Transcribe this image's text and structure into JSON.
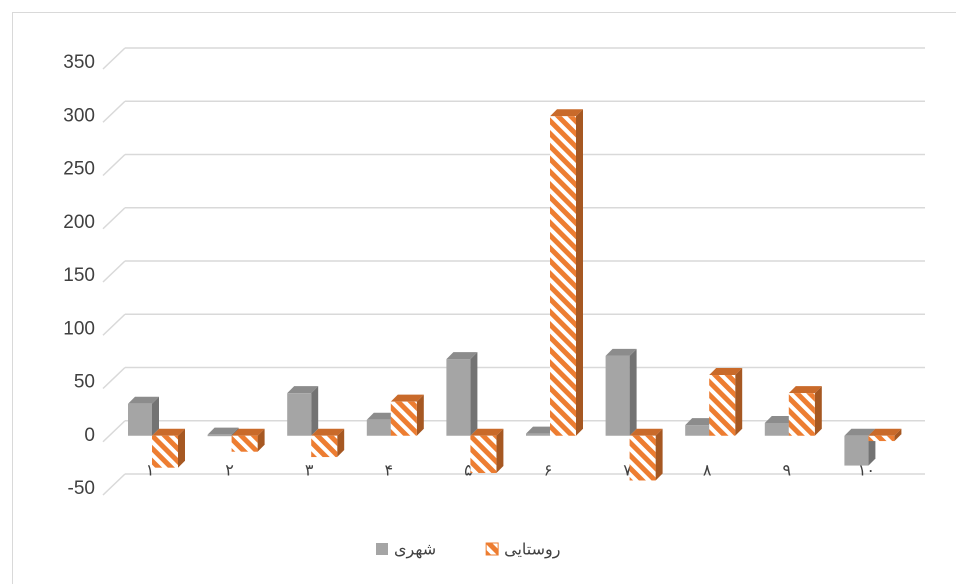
{
  "chart_data": {
    "type": "bar3d",
    "categories": [
      "۱",
      "۲",
      "۳",
      "۴",
      "۵",
      "۶",
      "۷",
      "۸",
      "۹",
      "۱۰"
    ],
    "series": [
      {
        "name": "شهری",
        "color": "#a5a5a5",
        "values": [
          30,
          1,
          40,
          15,
          72,
          2,
          75,
          10,
          12,
          -28
        ]
      },
      {
        "name": "روستایی",
        "color": "#ed7d31",
        "values": [
          -30,
          -15,
          -20,
          32,
          -35,
          300,
          -42,
          57,
          40,
          -5
        ]
      }
    ],
    "ylim": [
      -50,
      350
    ],
    "yticks": [
      -50,
      0,
      50,
      100,
      150,
      200,
      250,
      300,
      350
    ],
    "grid": true,
    "legend": "bottom"
  }
}
